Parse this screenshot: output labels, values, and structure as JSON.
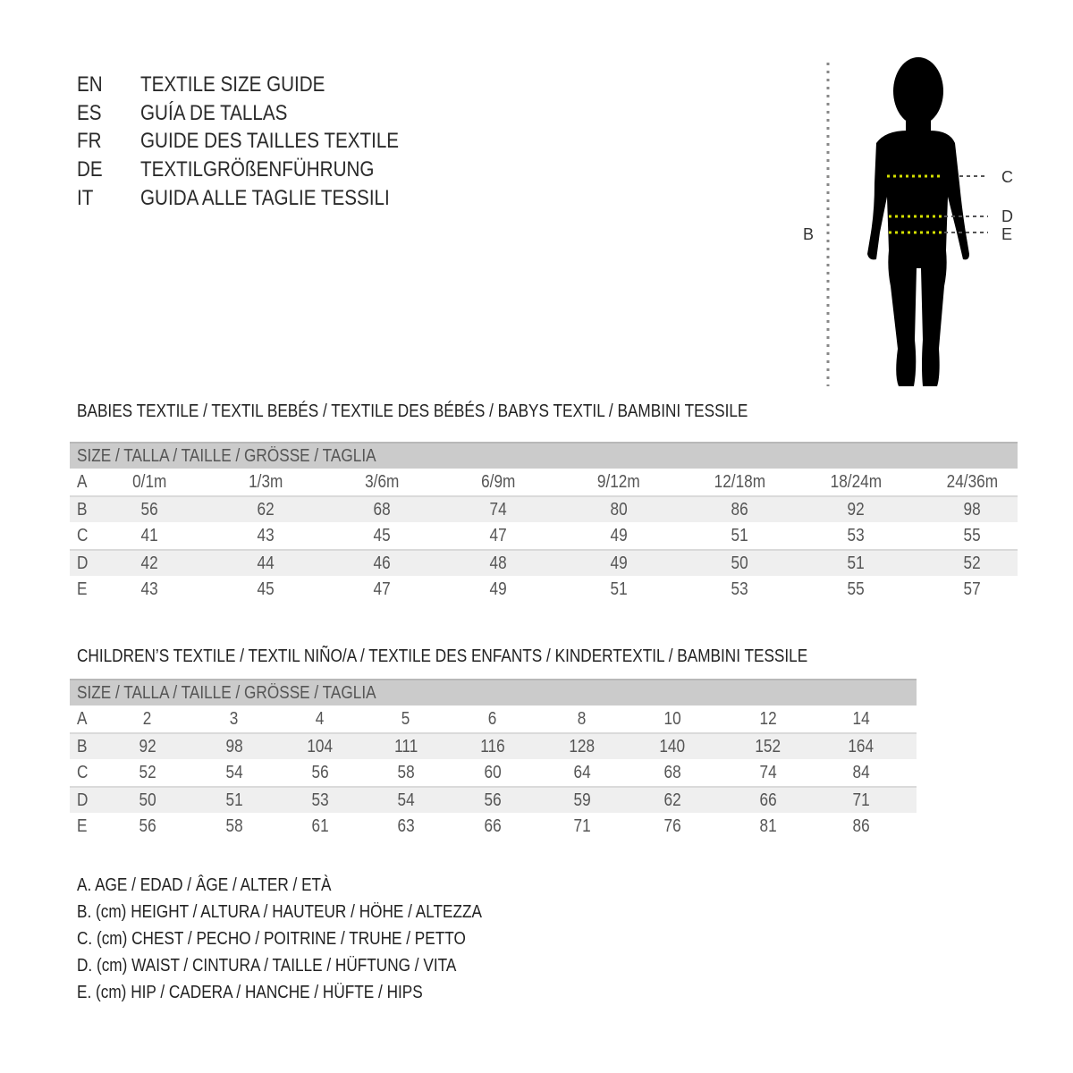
{
  "header": [
    {
      "code": "EN",
      "title": "TEXTILE SIZE GUIDE"
    },
    {
      "code": "ES",
      "title": "GUÍA DE TALLAS"
    },
    {
      "code": "FR",
      "title": "GUIDE DES TAILLES TEXTILE"
    },
    {
      "code": "DE",
      "title": "TEXTILGRÖßENFÜHRUNG"
    },
    {
      "code": "IT",
      "title": "GUIDA ALLE TAGLIE TESSILI"
    }
  ],
  "figure": {
    "labels": {
      "height": "B",
      "chest": "C",
      "waist": "D",
      "hip": "E"
    },
    "measure_line_color": "#d4e000"
  },
  "babies": {
    "title": "BABIES TEXTILE / TEXTIL BEBÉS / TEXTILE DES BÉBÉS / BABYS TEXTIL  / BAMBINI TESSILE",
    "size_header": "SIZE / TALLA / TAILLE / GRÖSSE / TAGLIA",
    "rows": [
      {
        "label": "A",
        "values": [
          "0/1m",
          "1/3m",
          "3/6m",
          "6/9m",
          "9/12m",
          "12/18m",
          "18/24m",
          "24/36m"
        ]
      },
      {
        "label": "B",
        "values": [
          "56",
          "62",
          "68",
          "74",
          "80",
          "86",
          "92",
          "98"
        ]
      },
      {
        "label": "C",
        "values": [
          "41",
          "43",
          "45",
          "47",
          "49",
          "51",
          "53",
          "55"
        ]
      },
      {
        "label": "D",
        "values": [
          "42",
          "44",
          "46",
          "48",
          "49",
          "50",
          "51",
          "52"
        ]
      },
      {
        "label": "E",
        "values": [
          "43",
          "45",
          "47",
          "49",
          "51",
          "53",
          "55",
          "57"
        ]
      }
    ]
  },
  "children": {
    "title": "CHILDREN’S TEXTILE / TEXTIL NIÑO/A / TEXTILE DES ENFANTS / KINDERTEXTIL / BAMBINI TESSILE",
    "size_header": "SIZE / TALLA / TAILLE / GRÖSSE / TAGLIA",
    "rows": [
      {
        "label": "A",
        "values": [
          "2",
          "3",
          "4",
          "5",
          "6",
          "8",
          "10",
          "12",
          "14"
        ]
      },
      {
        "label": "B",
        "values": [
          "92",
          "98",
          "104",
          "111",
          "116",
          "128",
          "140",
          "152",
          "164"
        ]
      },
      {
        "label": "C",
        "values": [
          "52",
          "54",
          "56",
          "58",
          "60",
          "64",
          "68",
          "74",
          "84"
        ]
      },
      {
        "label": "D",
        "values": [
          "50",
          "51",
          "53",
          "54",
          "56",
          "59",
          "62",
          "66",
          "71"
        ]
      },
      {
        "label": "E",
        "values": [
          "56",
          "58",
          "61",
          "63",
          "66",
          "71",
          "76",
          "81",
          "86"
        ]
      }
    ]
  },
  "legend": [
    "A. AGE / EDAD / ÂGE / ALTER / ETÀ",
    "B. (cm) HEIGHT / ALTURA / HAUTEUR / HÖHE / ALTEZZA",
    "C. (cm) CHEST / PECHO / POITRINE / TRUHE / PETTO",
    "D. (cm) WAIST / CINTURA / TAILLE / HÜFTUNG / VITA",
    "E. (cm) HIP / CADERA / HANCHE / HÜFTE / HIPS"
  ]
}
